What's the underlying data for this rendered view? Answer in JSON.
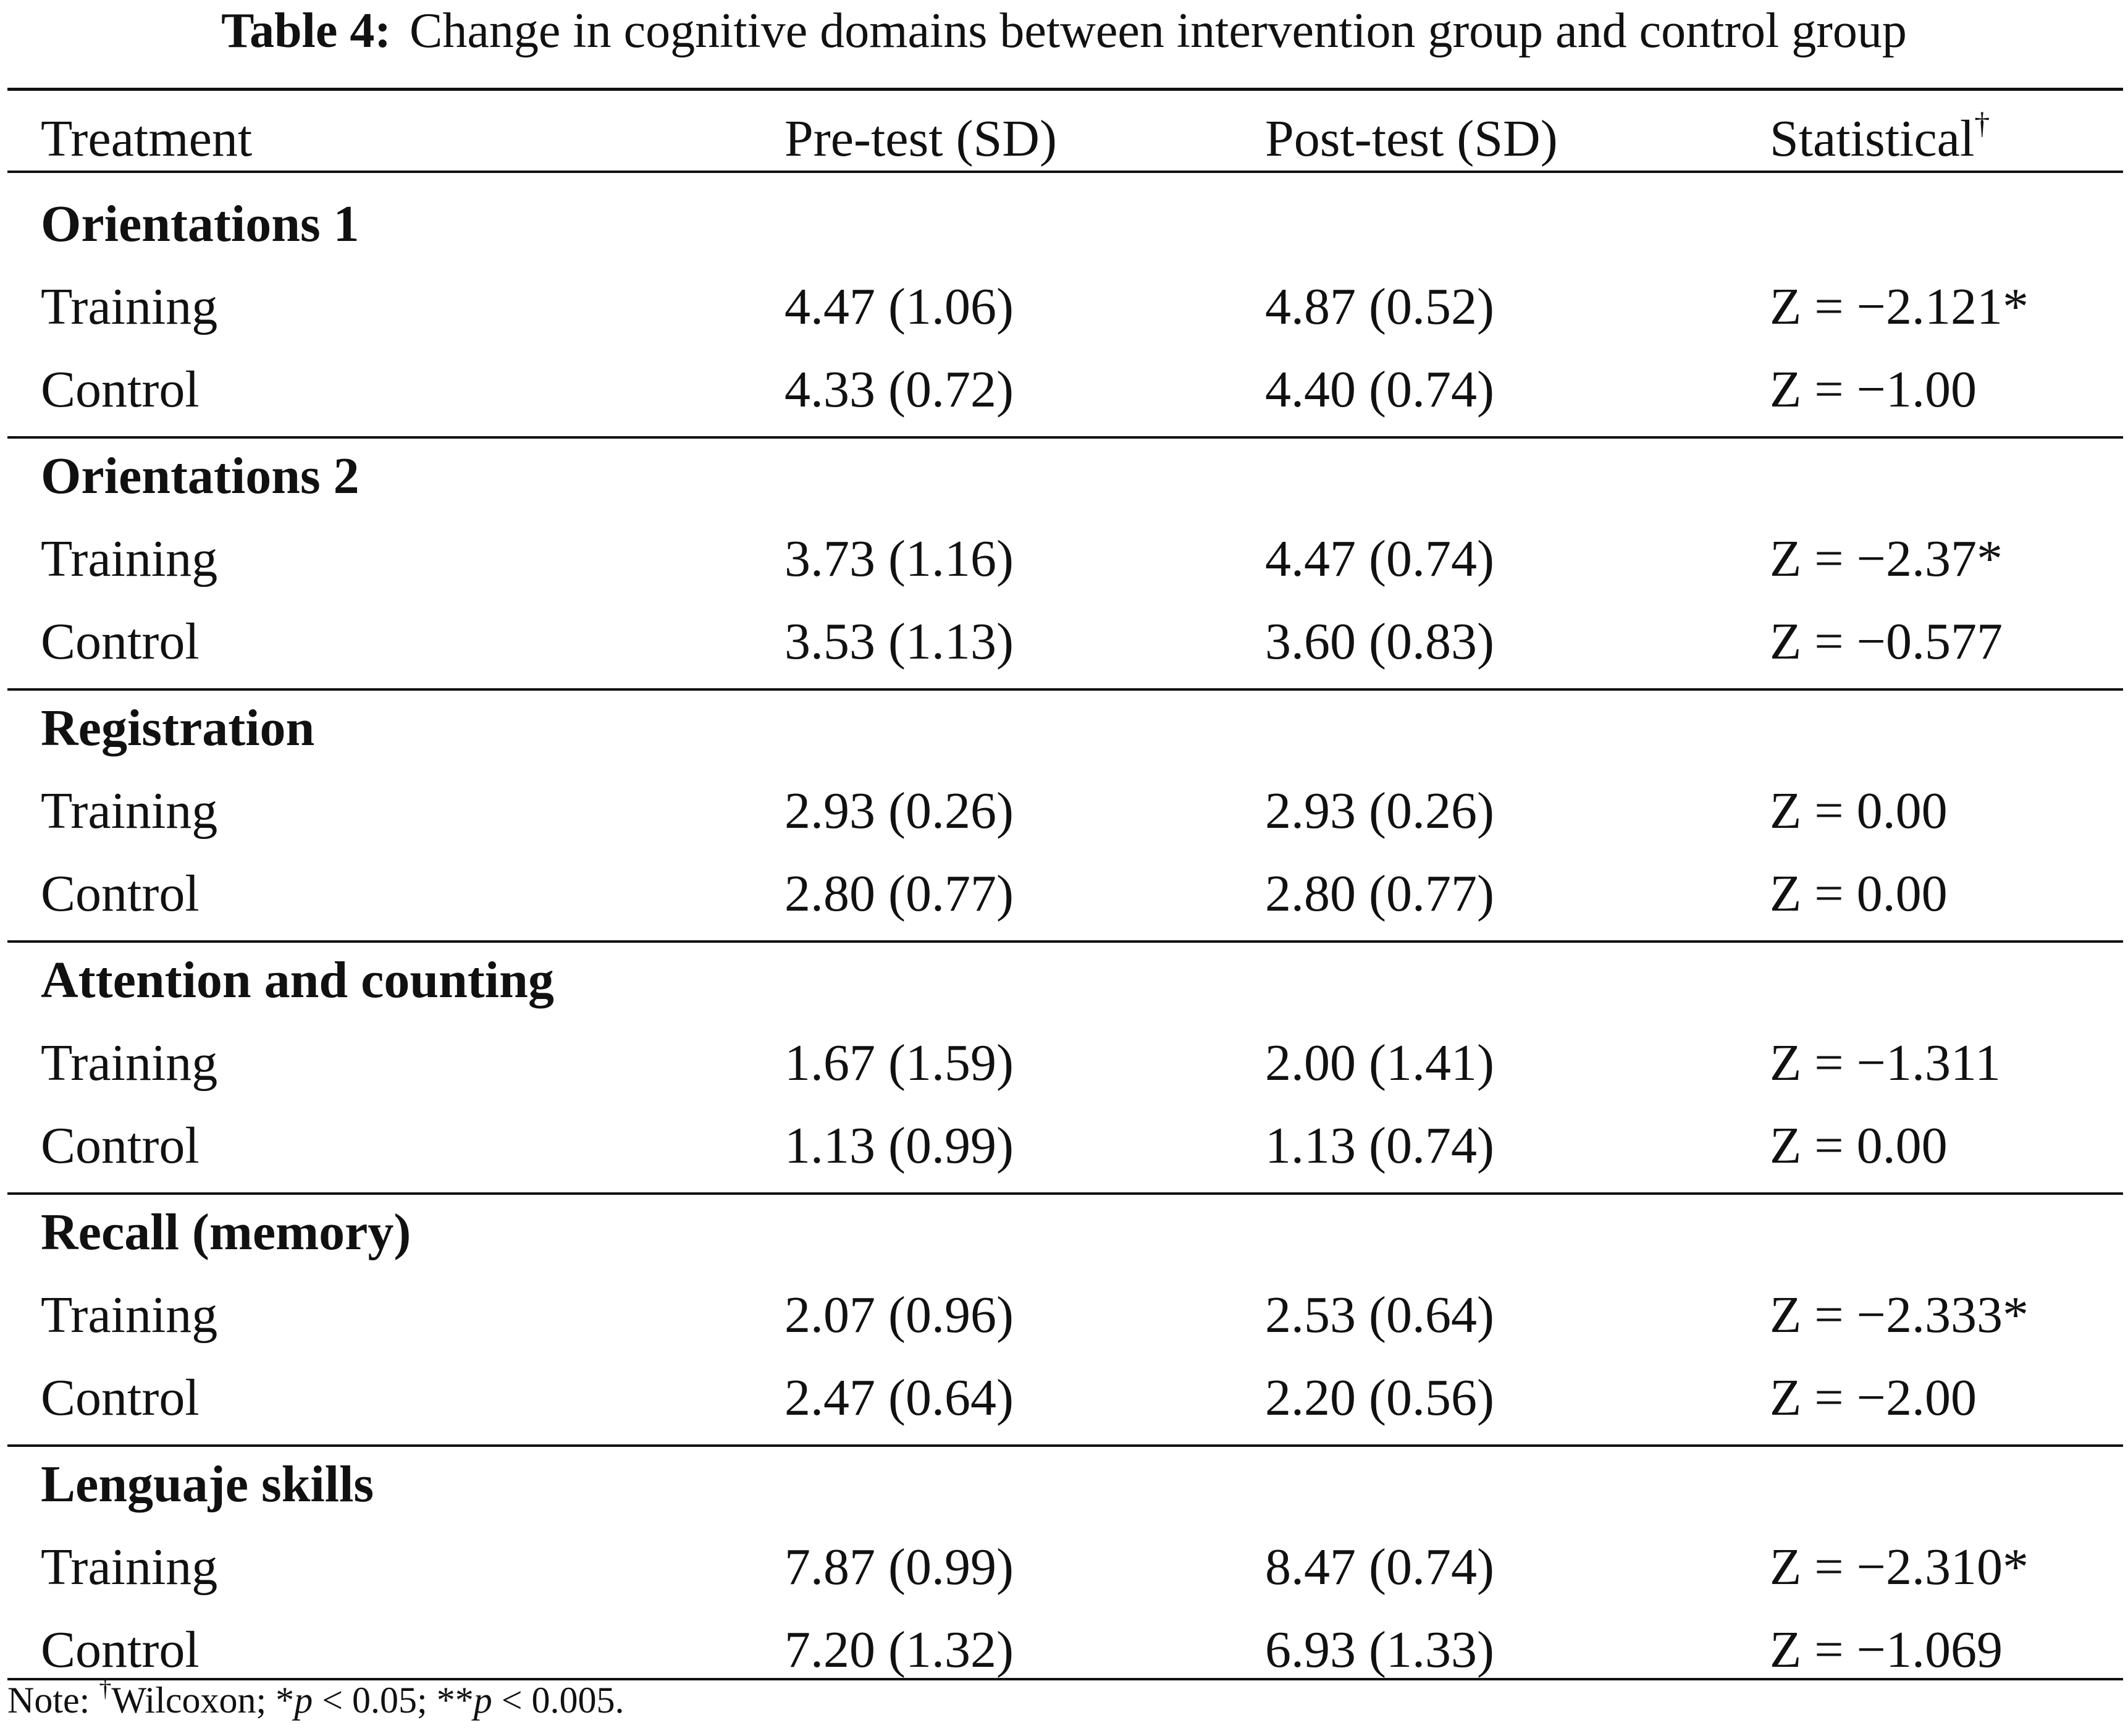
{
  "caption": {
    "label": "Table 4:",
    "text": "Change in cognitive domains between intervention group and control group"
  },
  "header": {
    "treatment": "Treatment",
    "pre": "Pre-test (SD)",
    "post": "Post-test (SD)",
    "statistical": "Statistical",
    "statistical_mark": "†"
  },
  "sections": [
    {
      "title": "Orientations 1",
      "rows": [
        {
          "group": "Training",
          "pre": "4.47 (1.06)",
          "post": "4.87 (0.52)",
          "stat": "Z = −2.121*"
        },
        {
          "group": "Control",
          "pre": "4.33 (0.72)",
          "post": "4.40 (0.74)",
          "stat": "Z = −1.00"
        }
      ]
    },
    {
      "title": "Orientations 2",
      "rows": [
        {
          "group": "Training",
          "pre": "3.73 (1.16)",
          "post": "4.47 (0.74)",
          "stat": "Z = −2.37*"
        },
        {
          "group": "Control",
          "pre": "3.53 (1.13)",
          "post": "3.60 (0.83)",
          "stat": "Z = −0.577"
        }
      ]
    },
    {
      "title": "Registration",
      "rows": [
        {
          "group": "Training",
          "pre": "2.93 (0.26)",
          "post": "2.93 (0.26)",
          "stat": "Z = 0.00"
        },
        {
          "group": "Control",
          "pre": "2.80 (0.77)",
          "post": "2.80 (0.77)",
          "stat": "Z = 0.00"
        }
      ]
    },
    {
      "title": "Attention and counting",
      "rows": [
        {
          "group": "Training",
          "pre": "1.67 (1.59)",
          "post": "2.00 (1.41)",
          "stat": "Z = −1.311"
        },
        {
          "group": "Control",
          "pre": "1.13 (0.99)",
          "post": "1.13 (0.74)",
          "stat": "Z = 0.00"
        }
      ]
    },
    {
      "title": "Recall (memory)",
      "rows": [
        {
          "group": "Training",
          "pre": "2.07 (0.96)",
          "post": "2.53 (0.64)",
          "stat": "Z = −2.333*"
        },
        {
          "group": "Control",
          "pre": "2.47 (0.64)",
          "post": "2.20 (0.56)",
          "stat": "Z = −2.00"
        }
      ]
    },
    {
      "title": "Lenguaje skills",
      "rows": [
        {
          "group": "Training",
          "pre": "7.87 (0.99)",
          "post": "8.47 (0.74)",
          "stat": "Z = −2.310*"
        },
        {
          "group": "Control",
          "pre": "7.20 (1.32)",
          "post": "6.93 (1.33)",
          "stat": "Z = −1.069"
        }
      ]
    }
  ],
  "note": {
    "prefix": "Note: ",
    "dagger": "†",
    "wilcoxon": "Wilcoxon; *",
    "p1": "p",
    "p1_rest": " < 0.05; **",
    "p2": "p",
    "p2_rest": " < 0.005."
  }
}
